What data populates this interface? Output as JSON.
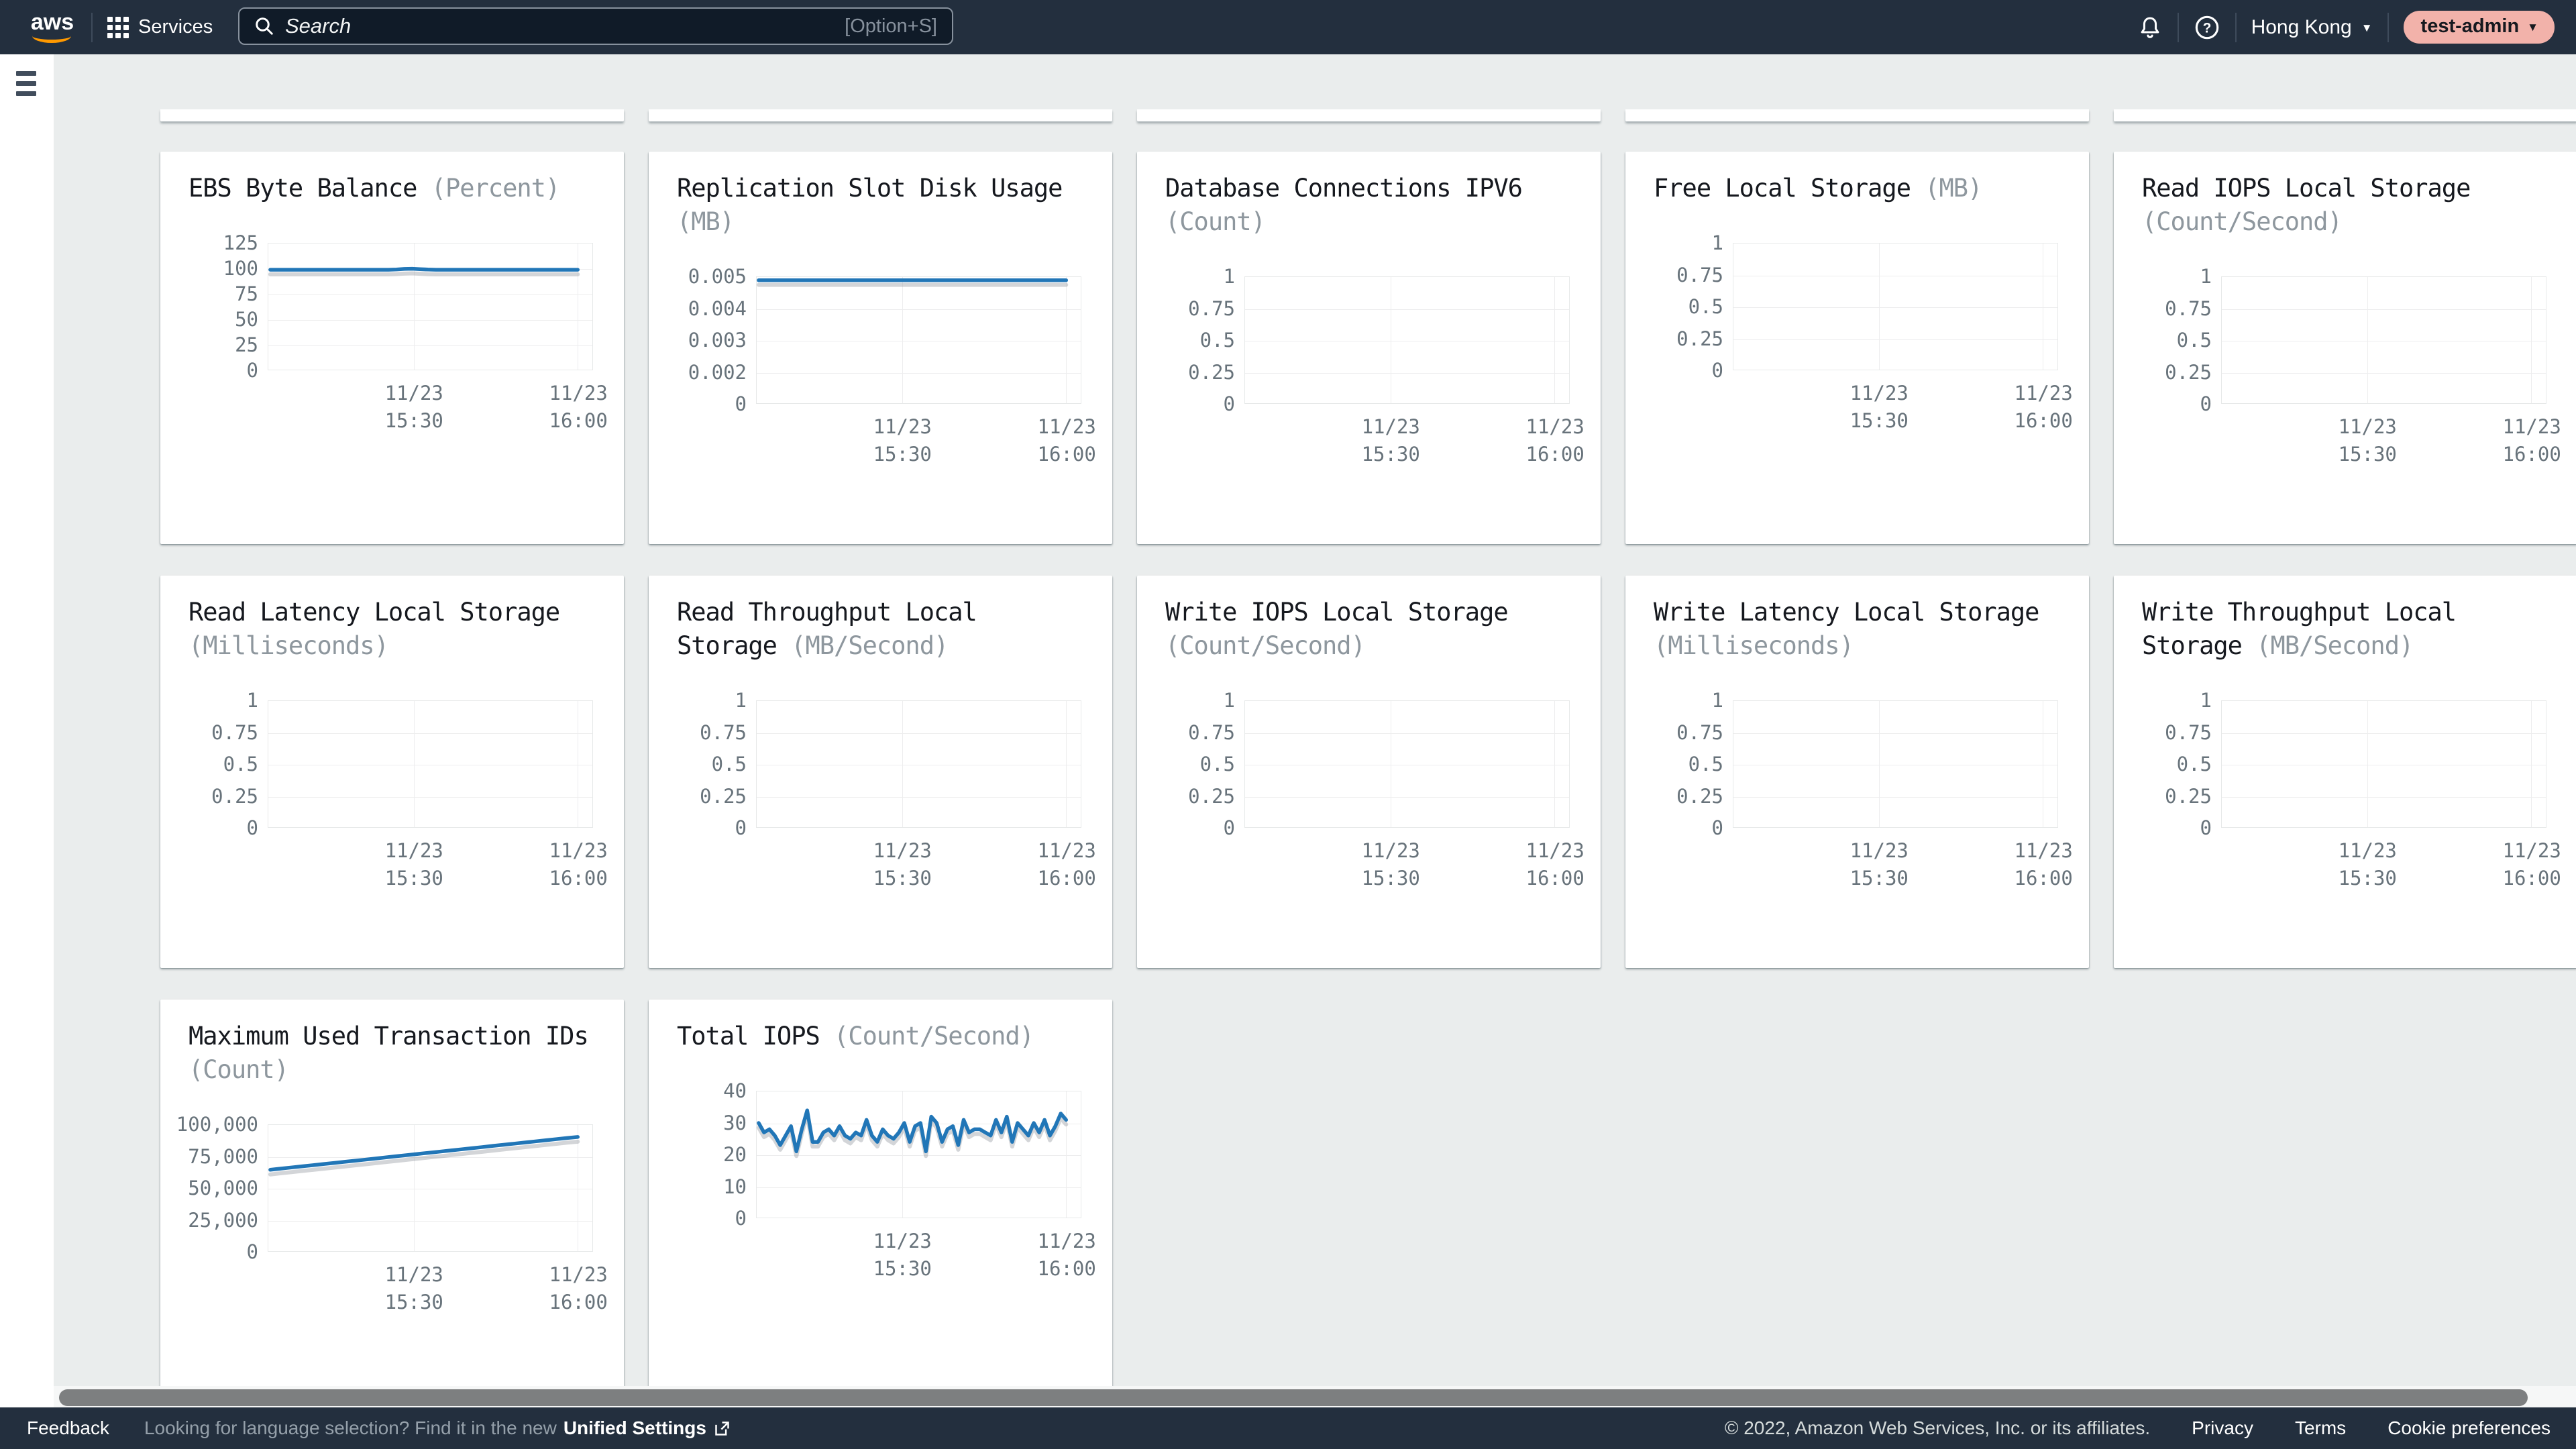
{
  "topbar": {
    "logo": "aws",
    "services_label": "Services",
    "search_placeholder": "Search",
    "search_shortcut": "[Option+S]",
    "region": "Hong Kong",
    "account": "test-admin"
  },
  "footer": {
    "feedback": "Feedback",
    "language_hint": "Looking for language selection? Find it in the new",
    "unified_settings": "Unified Settings",
    "copyright": "© 2022, Amazon Web Services, Inc. or its affiliates.",
    "links": [
      "Privacy",
      "Terms",
      "Cookie preferences"
    ]
  },
  "colors": {
    "topbar_bg": "#232f3e",
    "page_bg": "#eaeded",
    "accent_orange": "#ff9900",
    "line_blue": "#2176b7",
    "account_pill": "#f2b2aa"
  },
  "partial_top_cards": 5,
  "chart_data": [
    {
      "type": "line",
      "title": "EBS Byte Balance",
      "unit": "(Percent)",
      "yticks": [
        "125",
        "100",
        "75",
        "50",
        "25",
        "0"
      ],
      "ytick_values": [
        125,
        100,
        75,
        50,
        25,
        0
      ],
      "xticks": [
        [
          "11/23",
          "15:30"
        ],
        [
          "11/23",
          "16:00"
        ]
      ],
      "values": [
        99,
        99,
        99,
        99,
        99,
        99,
        99,
        99,
        99,
        99,
        99,
        99,
        99,
        99,
        99,
        99,
        99.3,
        99.8,
        100,
        99.6,
        99.2,
        99,
        99,
        99,
        99,
        99,
        99,
        99,
        99,
        99,
        99,
        99,
        99,
        99,
        99,
        99,
        99,
        99,
        99,
        99
      ]
    },
    {
      "type": "line",
      "title": "Replication Slot Disk Usage",
      "unit": "(MB)",
      "yticks": [
        "0.005",
        "0.004",
        "0.003",
        "0.002",
        "0"
      ],
      "ytick_values": [
        0.005,
        0.004,
        0.003,
        0.002,
        0
      ],
      "xticks": [
        [
          "11/23",
          "15:30"
        ],
        [
          "11/23",
          "16:00"
        ]
      ],
      "values": [
        0.0049,
        0.0049
      ]
    },
    {
      "type": "line",
      "title": "Database Connections IPV6",
      "unit": "(Count)",
      "yticks": [
        "1",
        "0.75",
        "0.5",
        "0.25",
        "0"
      ],
      "ytick_values": [
        1,
        0.75,
        0.5,
        0.25,
        0
      ],
      "xticks": [
        [
          "11/23",
          "15:30"
        ],
        [
          "11/23",
          "16:00"
        ]
      ],
      "values": null
    },
    {
      "type": "line",
      "title": "Free Local Storage",
      "unit": "(MB)",
      "yticks": [
        "1",
        "0.75",
        "0.5",
        "0.25",
        "0"
      ],
      "ytick_values": [
        1,
        0.75,
        0.5,
        0.25,
        0
      ],
      "xticks": [
        [
          "11/23",
          "15:30"
        ],
        [
          "11/23",
          "16:00"
        ]
      ],
      "values": null
    },
    {
      "type": "line",
      "title": "Read IOPS Local Storage",
      "unit": "(Count/Second)",
      "yticks": [
        "1",
        "0.75",
        "0.5",
        "0.25",
        "0"
      ],
      "ytick_values": [
        1,
        0.75,
        0.5,
        0.25,
        0
      ],
      "xticks": [
        [
          "11/23",
          "15:30"
        ],
        [
          "11/23",
          "16:00"
        ]
      ],
      "values": null
    },
    {
      "type": "line",
      "title": "Read Latency Local Storage",
      "unit": "(Milliseconds)",
      "yticks": [
        "1",
        "0.75",
        "0.5",
        "0.25",
        "0"
      ],
      "ytick_values": [
        1,
        0.75,
        0.5,
        0.25,
        0
      ],
      "xticks": [
        [
          "11/23",
          "15:30"
        ],
        [
          "11/23",
          "16:00"
        ]
      ],
      "values": null
    },
    {
      "type": "line",
      "title": "Read Throughput Local Storage",
      "unit": "(MB/Second)",
      "yticks": [
        "1",
        "0.75",
        "0.5",
        "0.25",
        "0"
      ],
      "ytick_values": [
        1,
        0.75,
        0.5,
        0.25,
        0
      ],
      "xticks": [
        [
          "11/23",
          "15:30"
        ],
        [
          "11/23",
          "16:00"
        ]
      ],
      "values": null
    },
    {
      "type": "line",
      "title": "Write IOPS Local Storage",
      "unit": "(Count/Second)",
      "yticks": [
        "1",
        "0.75",
        "0.5",
        "0.25",
        "0"
      ],
      "ytick_values": [
        1,
        0.75,
        0.5,
        0.25,
        0
      ],
      "xticks": [
        [
          "11/23",
          "15:30"
        ],
        [
          "11/23",
          "16:00"
        ]
      ],
      "values": null
    },
    {
      "type": "line",
      "title": "Write Latency Local Storage",
      "unit": "(Milliseconds)",
      "yticks": [
        "1",
        "0.75",
        "0.5",
        "0.25",
        "0"
      ],
      "ytick_values": [
        1,
        0.75,
        0.5,
        0.25,
        0
      ],
      "xticks": [
        [
          "11/23",
          "15:30"
        ],
        [
          "11/23",
          "16:00"
        ]
      ],
      "values": null
    },
    {
      "type": "line",
      "title": "Write Throughput Local Storage",
      "unit": "(MB/Second)",
      "yticks": [
        "1",
        "0.75",
        "0.5",
        "0.25",
        "0"
      ],
      "ytick_values": [
        1,
        0.75,
        0.5,
        0.25,
        0
      ],
      "xticks": [
        [
          "11/23",
          "15:30"
        ],
        [
          "11/23",
          "16:00"
        ]
      ],
      "values": null
    },
    {
      "type": "line",
      "title": "Maximum Used Transaction IDs",
      "unit": "(Count)",
      "yticks": [
        "100,000",
        "75,000",
        "50,000",
        "25,000",
        "0"
      ],
      "ytick_values": [
        100000,
        75000,
        50000,
        25000,
        0
      ],
      "xticks": [
        [
          "11/23",
          "15:30"
        ],
        [
          "11/23",
          "16:00"
        ]
      ],
      "values": [
        64500,
        65400,
        66300,
        67200,
        68100,
        69000,
        69900,
        70800,
        71700,
        72600,
        73500,
        74400,
        75300,
        76200,
        77100,
        78000,
        78900,
        79800,
        80700,
        81600,
        82500,
        83400,
        84300,
        85200,
        86100,
        87000,
        87900,
        88800,
        89700,
        90500
      ]
    },
    {
      "type": "line",
      "title": "Total IOPS",
      "unit": "(Count/Second)",
      "yticks": [
        "40",
        "30",
        "20",
        "10",
        "0"
      ],
      "ytick_values": [
        40,
        30,
        20,
        10,
        0
      ],
      "xticks": [
        [
          "11/23",
          "15:30"
        ],
        [
          "11/23",
          "16:00"
        ]
      ],
      "values": [
        30,
        27,
        28,
        26,
        23,
        26,
        29,
        21,
        28,
        34,
        24,
        24,
        27,
        28,
        26,
        29,
        26,
        25,
        27,
        26,
        31,
        26,
        24,
        28,
        26,
        25,
        27,
        30,
        24,
        29,
        30,
        21,
        32,
        30,
        24,
        28,
        29,
        23,
        31,
        27,
        28,
        28,
        27,
        26,
        31,
        27,
        32,
        24,
        30,
        28,
        26,
        30,
        27,
        31,
        26,
        29,
        33,
        31
      ]
    }
  ]
}
